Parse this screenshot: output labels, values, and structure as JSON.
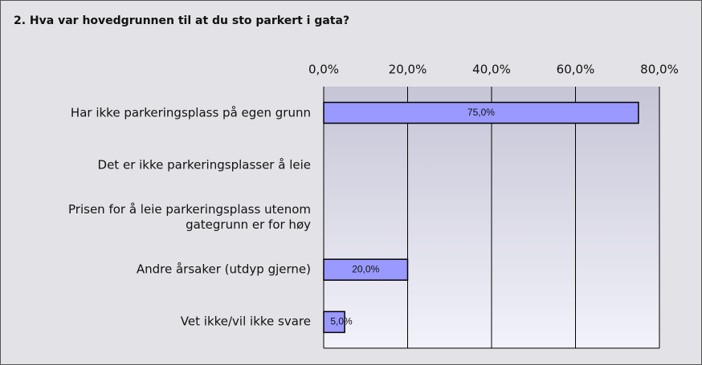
{
  "chart_data": {
    "type": "barh",
    "title": "2. Hva var hovedgrunnen til at du sto parkert i gata?",
    "categories": [
      "Har ikke parkeringsplass på egen grunn",
      "Det er ikke parkeringsplasser å leie",
      "Prisen for å leie parkeringsplass utenom gategrunn er for høy",
      "Andre årsaker (utdyp gjerne)",
      "Vet ikke/vil ikke svare"
    ],
    "values": [
      75,
      0,
      0,
      20,
      5
    ],
    "value_labels": [
      "75,0%",
      null,
      null,
      "20,0%",
      "5,0%"
    ],
    "color": "#9999ff",
    "xlim": [
      0,
      80
    ],
    "xticks": [
      {
        "value": 0,
        "label": "0,0%"
      },
      {
        "value": 20,
        "label": "20,0%"
      },
      {
        "value": 40,
        "label": "40,0%"
      },
      {
        "value": 60,
        "label": "60,0%"
      },
      {
        "value": 80,
        "label": "80,0%"
      }
    ],
    "grid": true
  }
}
